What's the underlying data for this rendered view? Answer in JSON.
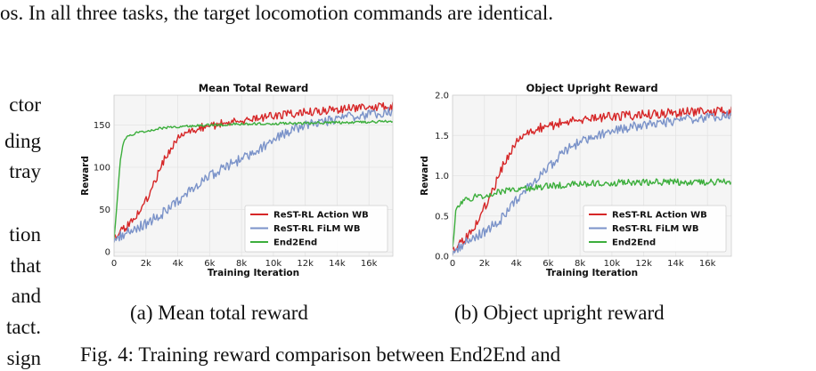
{
  "text": {
    "top_line": "os. In all three tasks, the target locomotion commands are identical.",
    "left_fragments": [
      "ctor",
      "ding",
      "tray",
      "",
      "tion",
      "that",
      "and",
      "tact.",
      "sign"
    ],
    "caption_a": "(a) Mean total reward",
    "caption_b": "(b) Object upright reward",
    "figure_caption": "Fig. 4: Training reward comparison between End2End and"
  },
  "colors": {
    "action_wb": "#d62728",
    "film_wb": "#7b93c9",
    "end2end": "#3cae3c",
    "plot_bg": "#f5f5f5",
    "grid": "#ffffff"
  },
  "chart_data": [
    {
      "type": "line",
      "title": "Mean Total Reward",
      "xlabel": "Training Iteration",
      "ylabel": "Reward",
      "xlim": [
        0,
        17500
      ],
      "ylim": [
        -5,
        185
      ],
      "xticks": [
        0,
        2000,
        4000,
        6000,
        8000,
        10000,
        12000,
        14000,
        16000
      ],
      "xtick_labels": [
        "0",
        "2k",
        "4k",
        "6k",
        "8k",
        "10k",
        "12k",
        "14k",
        "16k"
      ],
      "yticks": [
        0,
        50,
        100,
        150
      ],
      "ytick_labels": [
        "0",
        "50",
        "100",
        "150"
      ],
      "legend_position": "bottom-right",
      "series": [
        {
          "name": "ReST-RL Action WB",
          "color": "#d62728",
          "noise": 5,
          "x": [
            0,
            500,
            1000,
            1500,
            2000,
            2500,
            3000,
            3500,
            4000,
            4500,
            5000,
            5500,
            6000,
            7000,
            8000,
            9000,
            10000,
            12000,
            14000,
            16000,
            17500
          ],
          "y": [
            15,
            25,
            33,
            45,
            60,
            80,
            103,
            120,
            133,
            140,
            145,
            147,
            149,
            152,
            155,
            158,
            161,
            165,
            168,
            171,
            172
          ]
        },
        {
          "name": "ReST-RL FiLM WB",
          "color": "#7b93c9",
          "noise": 6,
          "x": [
            0,
            1000,
            2000,
            3000,
            4000,
            5000,
            6000,
            7000,
            8000,
            9000,
            10000,
            11000,
            12000,
            14000,
            16000,
            17500
          ],
          "y": [
            15,
            25,
            33,
            45,
            60,
            75,
            90,
            100,
            110,
            120,
            133,
            143,
            150,
            157,
            162,
            165
          ]
        },
        {
          "name": "End2End",
          "color": "#3cae3c",
          "noise": 1.5,
          "x": [
            0,
            200,
            400,
            600,
            800,
            1000,
            1500,
            2000,
            3000,
            5000,
            8000,
            12000,
            17500
          ],
          "y": [
            15,
            60,
            110,
            130,
            135,
            138,
            141,
            143,
            146,
            149,
            151,
            152,
            154
          ]
        }
      ]
    },
    {
      "type": "line",
      "title": "Object Upright Reward",
      "xlabel": "Training Iteration",
      "ylabel": "Reward",
      "xlim": [
        0,
        17500
      ],
      "ylim": [
        0,
        2.0
      ],
      "xticks": [
        0,
        2000,
        4000,
        6000,
        8000,
        10000,
        12000,
        14000,
        16000
      ],
      "xtick_labels": [
        "0",
        "2k",
        "4k",
        "6k",
        "8k",
        "10k",
        "12k",
        "14k",
        "16k"
      ],
      "yticks": [
        0,
        0.5,
        1.0,
        1.5,
        2.0
      ],
      "ytick_labels": [
        "0.0",
        "0.5",
        "1.0",
        "1.5",
        "2.0"
      ],
      "legend_position": "bottom-right",
      "series": [
        {
          "name": "ReST-RL Action WB",
          "color": "#d62728",
          "noise": 0.06,
          "x": [
            0,
            500,
            1000,
            1500,
            2000,
            2500,
            3000,
            3500,
            4000,
            4500,
            5000,
            6000,
            7000,
            8000,
            10000,
            12000,
            14000,
            16000,
            17500
          ],
          "y": [
            0.05,
            0.15,
            0.25,
            0.4,
            0.6,
            0.8,
            1.05,
            1.25,
            1.4,
            1.5,
            1.57,
            1.62,
            1.66,
            1.7,
            1.74,
            1.76,
            1.78,
            1.8,
            1.8
          ]
        },
        {
          "name": "ReST-RL FiLM WB",
          "color": "#7b93c9",
          "noise": 0.06,
          "x": [
            0,
            1000,
            2000,
            3000,
            4000,
            5000,
            6000,
            7000,
            8000,
            9000,
            10000,
            11000,
            12000,
            14000,
            16000,
            17500
          ],
          "y": [
            0.05,
            0.2,
            0.3,
            0.45,
            0.7,
            0.9,
            1.1,
            1.3,
            1.42,
            1.5,
            1.56,
            1.6,
            1.63,
            1.68,
            1.72,
            1.75
          ]
        },
        {
          "name": "End2End",
          "color": "#3cae3c",
          "noise": 0.04,
          "x": [
            0,
            200,
            400,
            800,
            1500,
            2500,
            4000,
            6000,
            8000,
            12000,
            17500
          ],
          "y": [
            0.1,
            0.55,
            0.65,
            0.7,
            0.74,
            0.78,
            0.83,
            0.87,
            0.9,
            0.92,
            0.92
          ]
        }
      ]
    }
  ]
}
